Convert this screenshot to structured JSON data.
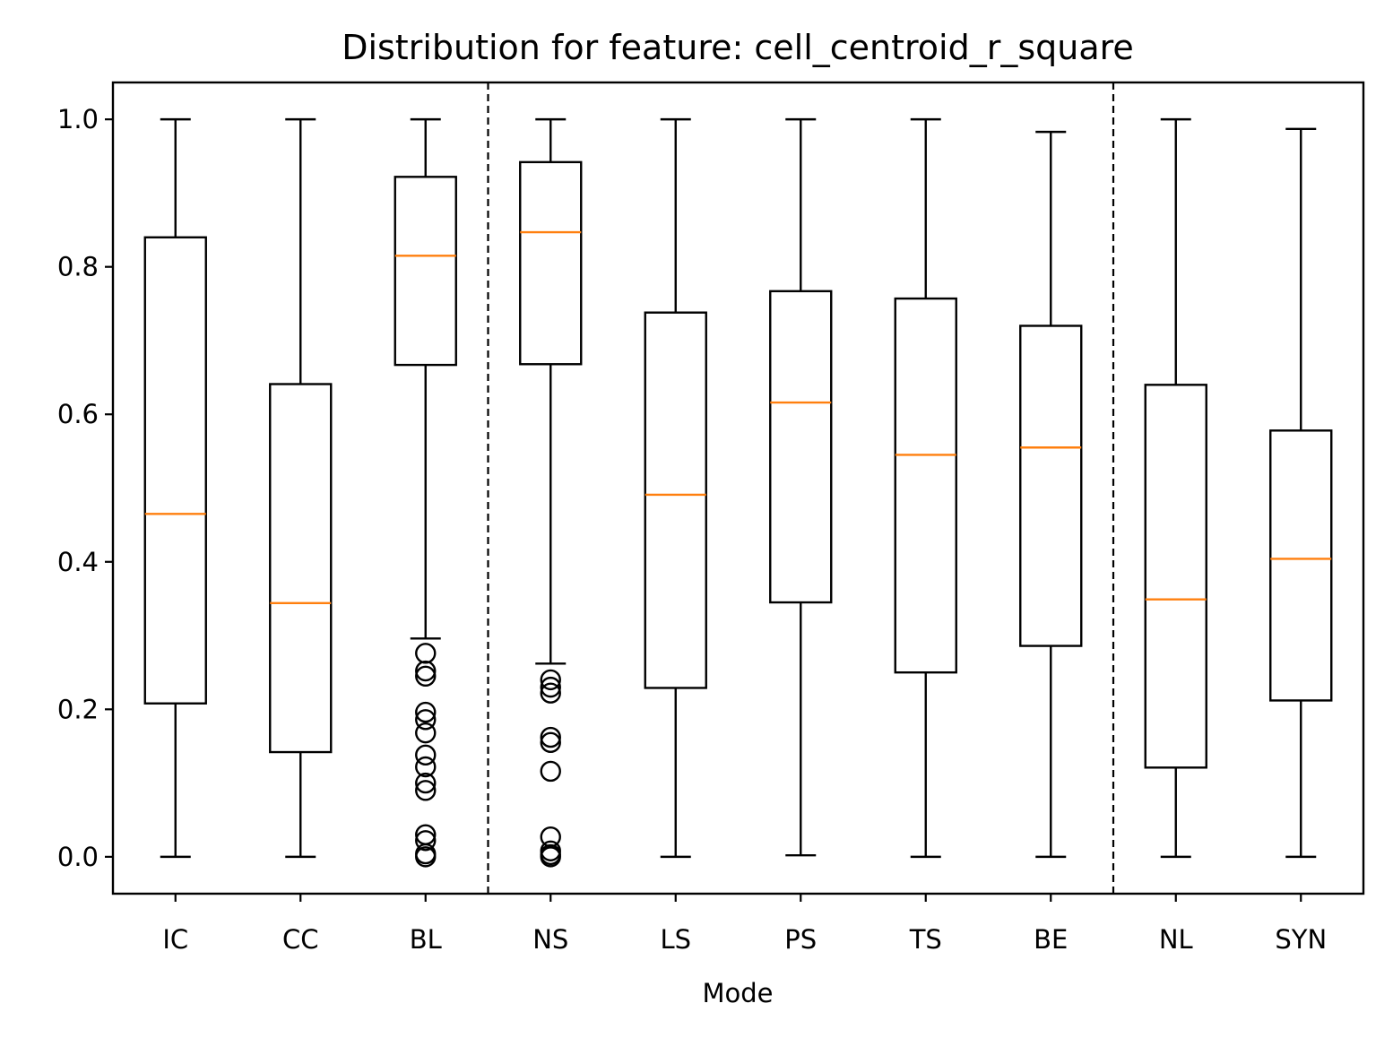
{
  "chart_data": {
    "type": "boxplot",
    "title": "Distribution for feature: cell_centroid_r_square",
    "xlabel": "Mode",
    "ylabel": "",
    "ylim": [
      -0.05,
      1.05
    ],
    "yticks": [
      "0.0",
      "0.2",
      "0.4",
      "0.6",
      "0.8",
      "1.0"
    ],
    "categories": [
      "IC",
      "CC",
      "BL",
      "NS",
      "LS",
      "PS",
      "TS",
      "BE",
      "NL",
      "SYN"
    ],
    "group_separators_after": [
      "BL",
      "BE"
    ],
    "grid": false,
    "colors": {
      "box": "#000000",
      "median": "#ff7f0e",
      "separator": "#000000"
    },
    "boxes": [
      {
        "category": "IC",
        "whisker_low": 0.0,
        "q1": 0.208,
        "median": 0.465,
        "q3": 0.84,
        "whisker_high": 1.0,
        "outliers": []
      },
      {
        "category": "CC",
        "whisker_low": 0.0,
        "q1": 0.142,
        "median": 0.344,
        "q3": 0.641,
        "whisker_high": 1.0,
        "outliers": []
      },
      {
        "category": "BL",
        "whisker_low": 0.296,
        "q1": 0.667,
        "median": 0.815,
        "q3": 0.922,
        "whisker_high": 1.0,
        "outliers": [
          0.276,
          0.252,
          0.245,
          0.196,
          0.186,
          0.168,
          0.138,
          0.122,
          0.1,
          0.09,
          0.03,
          0.022,
          0.004,
          0.0
        ]
      },
      {
        "category": "NS",
        "whisker_low": 0.262,
        "q1": 0.668,
        "median": 0.847,
        "q3": 0.942,
        "whisker_high": 1.0,
        "outliers": [
          0.24,
          0.23,
          0.222,
          0.162,
          0.155,
          0.116,
          0.027,
          0.008,
          0.003,
          0.0
        ]
      },
      {
        "category": "LS",
        "whisker_low": 0.0,
        "q1": 0.229,
        "median": 0.491,
        "q3": 0.738,
        "whisker_high": 1.0,
        "outliers": []
      },
      {
        "category": "PS",
        "whisker_low": 0.002,
        "q1": 0.345,
        "median": 0.616,
        "q3": 0.767,
        "whisker_high": 1.0,
        "outliers": []
      },
      {
        "category": "TS",
        "whisker_low": 0.0,
        "q1": 0.25,
        "median": 0.545,
        "q3": 0.757,
        "whisker_high": 1.0,
        "outliers": []
      },
      {
        "category": "BE",
        "whisker_low": 0.0,
        "q1": 0.286,
        "median": 0.555,
        "q3": 0.72,
        "whisker_high": 0.983,
        "outliers": []
      },
      {
        "category": "NL",
        "whisker_low": 0.0,
        "q1": 0.121,
        "median": 0.349,
        "q3": 0.64,
        "whisker_high": 1.0,
        "outliers": []
      },
      {
        "category": "SYN",
        "whisker_low": 0.0,
        "q1": 0.212,
        "median": 0.404,
        "q3": 0.578,
        "whisker_high": 0.987,
        "outliers": []
      }
    ]
  }
}
